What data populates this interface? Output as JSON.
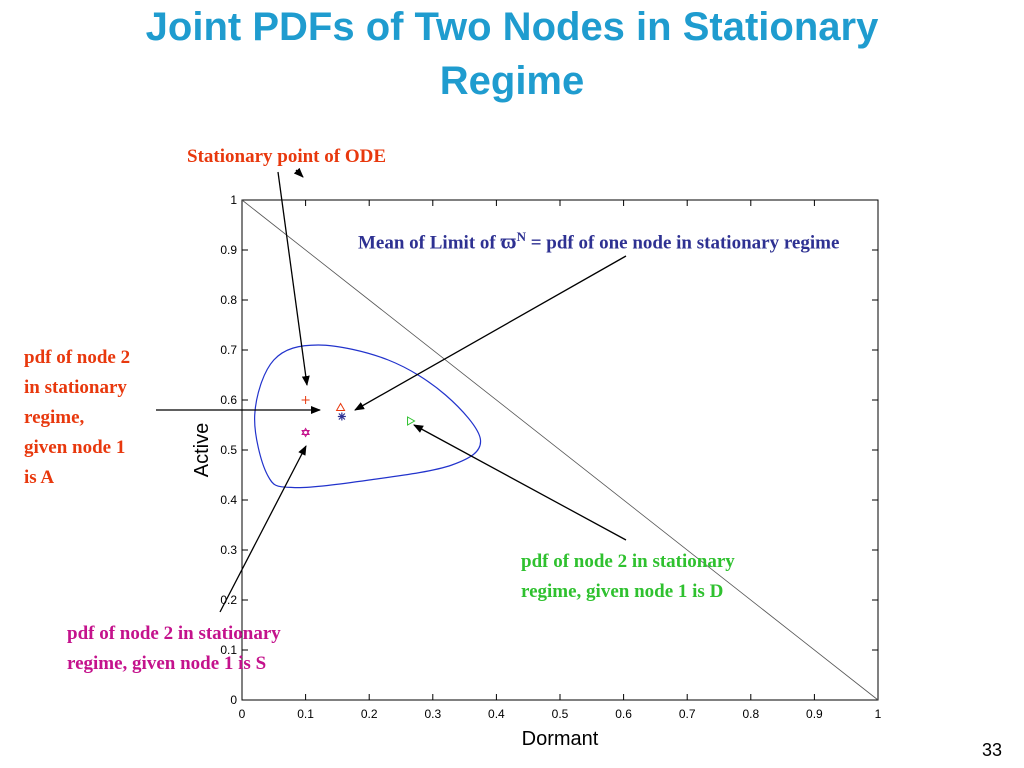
{
  "slide": {
    "title_line1": "Joint PDFs of Two Nodes in Stationary",
    "title_line2": "Regime",
    "page_number": "33"
  },
  "annotations": {
    "stationary_point": "Stationary point of ODE",
    "mean_limit_prefix": "Mean of Limit of ",
    "mean_limit_symbol": "ϖ",
    "mean_limit_sup": "N",
    "mean_limit_suffix": " = pdf of one node in stationary regime",
    "node_a": [
      "pdf of node 2",
      "in stationary",
      "regime,",
      "given node 1",
      "is A"
    ],
    "node_d": [
      "pdf of node 2 in stationary",
      "regime, given node 1 is D"
    ],
    "node_s": [
      "pdf of node 2 in stationary",
      "regime, given node 1 is S"
    ]
  },
  "colors": {
    "title": "#1f9ccf",
    "orange": "#e8380d",
    "navy": "#2e3192",
    "green": "#2fc12f",
    "magenta": "#c4128c"
  },
  "chart_data": {
    "type": "scatter",
    "xlabel": "Dormant",
    "ylabel": "Active",
    "xlim": [
      0,
      1
    ],
    "ylim": [
      0,
      1
    ],
    "xticks": [
      "0",
      "0.1",
      "0.2",
      "0.3",
      "0.4",
      "0.5",
      "0.6",
      "0.7",
      "0.8",
      "0.9",
      "1"
    ],
    "yticks": [
      "0",
      "0.1",
      "0.2",
      "0.3",
      "0.4",
      "0.5",
      "0.6",
      "0.7",
      "0.8",
      "0.9",
      "1"
    ],
    "grid": false,
    "diagonal": [
      [
        0,
        1
      ],
      [
        1,
        0
      ]
    ],
    "curve": [
      [
        0.02,
        0.57
      ],
      [
        0.05,
        0.68
      ],
      [
        0.12,
        0.71
      ],
      [
        0.23,
        0.68
      ],
      [
        0.32,
        0.61
      ],
      [
        0.375,
        0.52
      ],
      [
        0.33,
        0.47
      ],
      [
        0.2,
        0.44
      ],
      [
        0.08,
        0.425
      ],
      [
        0.04,
        0.45
      ],
      [
        0.02,
        0.57
      ]
    ],
    "points": [
      {
        "x": 0.1,
        "y": 0.6,
        "marker": "+",
        "color": "#e8380d"
      },
      {
        "x": 0.155,
        "y": 0.585,
        "marker": "triangle",
        "color": "#e8380d"
      },
      {
        "x": 0.157,
        "y": 0.567,
        "marker": "*",
        "color": "#2e3192"
      },
      {
        "x": 0.265,
        "y": 0.558,
        "marker": "triangle-right",
        "color": "#2fc12f"
      },
      {
        "x": 0.1,
        "y": 0.535,
        "marker": "hexagram",
        "color": "#c4128c"
      }
    ]
  }
}
